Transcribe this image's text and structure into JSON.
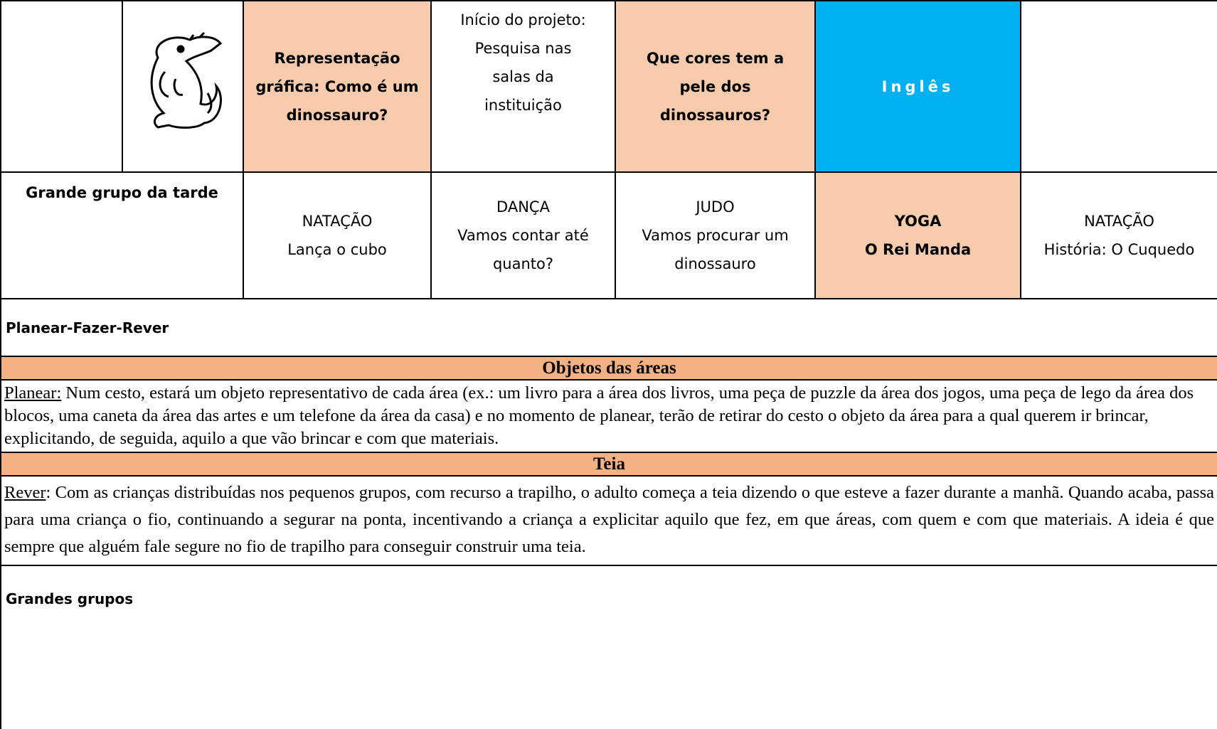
{
  "schedule": {
    "row1": {
      "c3": "Representação gráfica: Como é um dinossauro?",
      "c4": {
        "line1": "Início do projeto:",
        "line2": "Pesquisa nas salas da instituição"
      },
      "c5": "Que cores tem a pele dos dinossauros?",
      "c6": "Inglês"
    },
    "row2": {
      "label": "Grande grupo da tarde",
      "activities": [
        {
          "title": "NATAÇÃO",
          "subtitle": "Lança o cubo"
        },
        {
          "title": "DANÇA",
          "subtitle": "Vamos contar até quanto?"
        },
        {
          "title": "JUDO",
          "subtitle": "Vamos procurar um dinossauro"
        },
        {
          "title": "YOGA",
          "subtitle": "O Rei Manda"
        },
        {
          "title": "NATAÇÃO",
          "subtitle": "História: O Cuquedo"
        }
      ]
    }
  },
  "planear_fazer_rever": {
    "heading": "Planear-Fazer-Rever",
    "block1": {
      "title": "Objetos das áreas",
      "lead": "Planear:",
      "text": " Num cesto, estará um objeto representativo de cada área (ex.: um livro para a área dos livros, uma peça de puzzle da área dos jogos, uma peça de lego da área dos blocos, uma caneta da área das artes e um telefone da área da casa) e no momento de planear, terão de retirar do cesto o objeto da área para a qual querem ir brincar, explicitando, de seguida, aquilo a que vão brincar e com que materiais."
    },
    "block2": {
      "title": "Teia",
      "lead": "Rever",
      "text": ": Com as crianças distribuídas nos pequenos grupos, com recurso a trapilho, o adulto começa a teia dizendo o que esteve a fazer durante a manhã. Quando acaba, passa para uma criança o fio, continuando a segurar na ponta, incentivando a criança a explicitar aquilo que fez, em que áreas, com quem e com que materiais. A ideia é que sempre que alguém fale segure no fio de trapilho para conseguir construir uma teia."
    }
  },
  "grandes_grupos": {
    "heading": "Grandes grupos"
  }
}
